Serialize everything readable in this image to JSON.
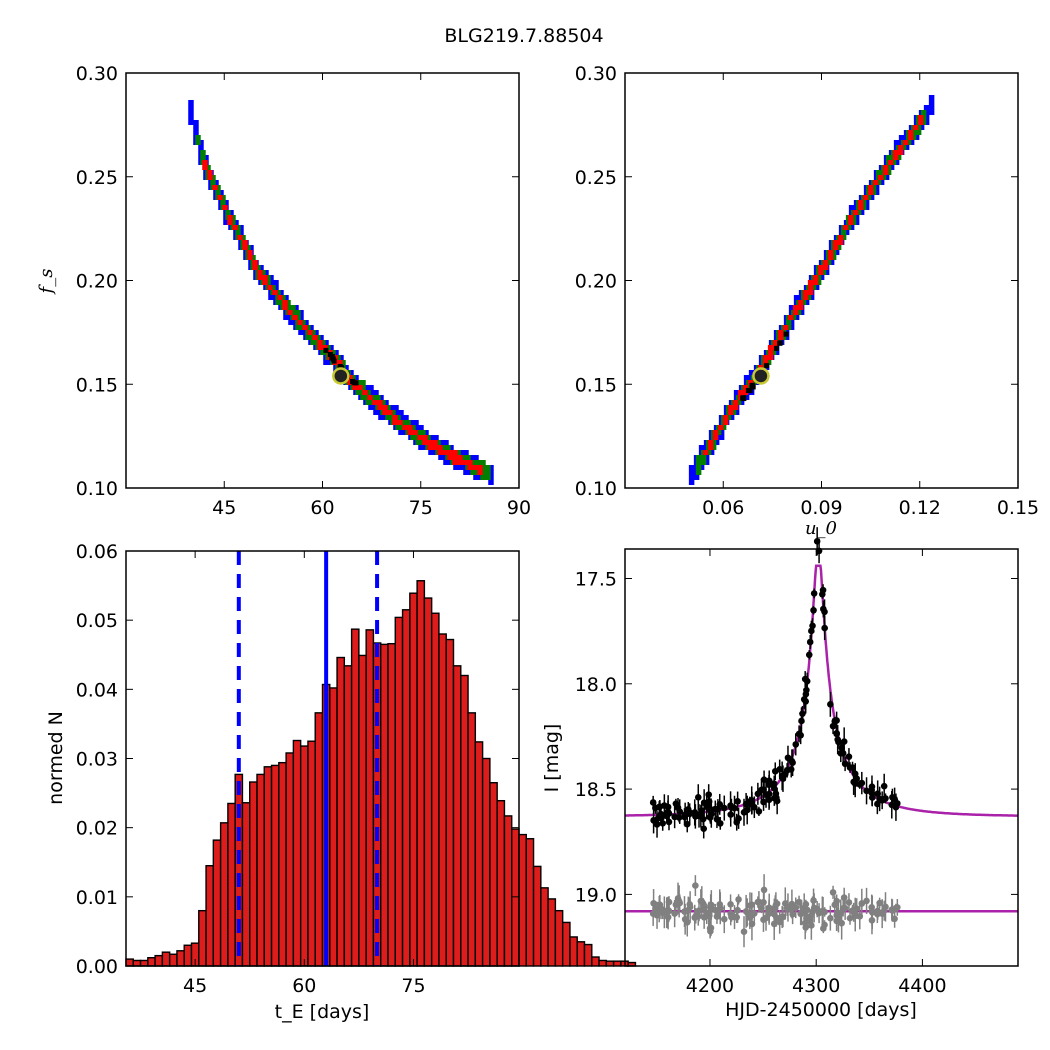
{
  "figure": {
    "title": "BLG219.7.88504"
  },
  "chart_data": [
    {
      "panel": "top-left",
      "type": "heatmap",
      "title": "",
      "xlabel": "",
      "ylabel": "f_s",
      "xlim": [
        30,
        90
      ],
      "ylim": [
        0.1,
        0.3
      ],
      "xticks": [
        45,
        60,
        75,
        90
      ],
      "xtick_labels": [
        "45",
        "60",
        "75",
        "90"
      ],
      "yticks": [
        0.1,
        0.15,
        0.2,
        0.25,
        0.3
      ],
      "ytick_labels": [
        "0.10",
        "0.15",
        "0.20",
        "0.25",
        "0.30"
      ],
      "confidence_colors": {
        "outer": "#0000ff",
        "middle": "#007f00",
        "inner": "#ff0000",
        "core": "#000000"
      },
      "best_fit": {
        "x": 62.8,
        "y": 0.154
      },
      "ridge": [
        [
          39.5,
          0.285
        ],
        [
          42,
          0.255
        ],
        [
          45,
          0.235
        ],
        [
          50,
          0.205
        ],
        [
          55,
          0.185
        ],
        [
          60,
          0.168
        ],
        [
          65,
          0.15
        ],
        [
          70,
          0.136
        ],
        [
          75,
          0.124
        ],
        [
          80,
          0.115
        ],
        [
          86,
          0.106
        ]
      ]
    },
    {
      "panel": "top-right",
      "type": "heatmap",
      "title": "",
      "xlabel": "u_0",
      "ylabel": "",
      "xlim": [
        0.03,
        0.15
      ],
      "ylim": [
        0.1,
        0.3
      ],
      "xticks": [
        0.06,
        0.09,
        0.12,
        0.15
      ],
      "xtick_labels": [
        "0.06",
        "0.09",
        "0.12",
        "0.15"
      ],
      "yticks": [
        0.1,
        0.15,
        0.2,
        0.25,
        0.3
      ],
      "ytick_labels": [
        "0.10",
        "0.15",
        "0.20",
        "0.25",
        "0.30"
      ],
      "confidence_colors": {
        "outer": "#0000ff",
        "middle": "#007f00",
        "inner": "#ff0000",
        "core": "#000000"
      },
      "best_fit": {
        "x": 0.0715,
        "y": 0.154
      },
      "ridge": [
        [
          0.0495,
          0.104
        ],
        [
          0.055,
          0.118
        ],
        [
          0.062,
          0.137
        ],
        [
          0.07,
          0.154
        ],
        [
          0.08,
          0.18
        ],
        [
          0.09,
          0.205
        ],
        [
          0.1,
          0.232
        ],
        [
          0.11,
          0.255
        ],
        [
          0.118,
          0.272
        ],
        [
          0.124,
          0.285
        ]
      ]
    },
    {
      "panel": "bottom-left",
      "type": "bar",
      "title": "",
      "xlabel": "t_E [days]",
      "ylabel": "normed N",
      "xlim": [
        35.5,
        89.5
      ],
      "ylim": [
        0,
        0.06
      ],
      "xticks": [
        45,
        60,
        75
      ],
      "xtick_labels": [
        "45",
        "60",
        "75"
      ],
      "yticks": [
        0,
        0.01,
        0.02,
        0.03,
        0.04,
        0.05,
        0.06
      ],
      "ytick_labels": [
        "0.00",
        "0.01",
        "0.02",
        "0.03",
        "0.04",
        "0.05",
        "0.06"
      ],
      "bin_start": 35.5,
      "bin_width": 1,
      "values": [
        0.001,
        0.0008,
        0.0008,
        0.0012,
        0.0015,
        0.002,
        0.0017,
        0.0022,
        0.003,
        0.0033,
        0.008,
        0.0145,
        0.0182,
        0.0207,
        0.0235,
        0.0277,
        0.0236,
        0.0266,
        0.0277,
        0.0288,
        0.029,
        0.0294,
        0.0308,
        0.0326,
        0.0318,
        0.0325,
        0.0366,
        0.0407,
        0.0402,
        0.0446,
        0.0434,
        0.0487,
        0.0449,
        0.0486,
        0.0467,
        0.0465,
        0.0466,
        0.0504,
        0.0515,
        0.0539,
        0.0557,
        0.0532,
        0.051,
        0.048,
        0.0472,
        0.0434,
        0.042,
        0.0366,
        0.0324,
        0.03,
        0.0265,
        0.0239,
        0.0217,
        0.0198,
        0.019,
        0.0184,
        0.0144,
        0.0113,
        0.0097,
        0.008,
        0.0063,
        0.0042,
        0.0035,
        0.0031,
        0.0013,
        0.0008,
        0.0007,
        0.0007,
        0.0007,
        0.0005
      ],
      "bar_color": "#dd1c1c",
      "median_line": {
        "x": 63.0,
        "color": "#0000ff",
        "style": "solid"
      },
      "percentile_lines": [
        {
          "x": 51.0,
          "color": "#0000ff",
          "style": "dashed"
        },
        {
          "x": 70.0,
          "color": "#0000ff",
          "style": "dashed"
        }
      ]
    },
    {
      "panel": "bottom-right",
      "type": "scatter",
      "title": "",
      "xlabel": "HJD-2450000 [days]",
      "ylabel": "I [mag]",
      "xlim": [
        4120,
        4490
      ],
      "ylim": [
        19.34,
        17.36
      ],
      "y_inverted": true,
      "xticks": [
        4200,
        4300,
        4400
      ],
      "xtick_labels": [
        "4200",
        "4300",
        "4400"
      ],
      "yticks": [
        17.5,
        18.0,
        18.5,
        19.0
      ],
      "ytick_labels": [
        "17.5",
        "18.0",
        "18.5",
        "19.0"
      ],
      "model": {
        "t0": 4302,
        "tE": 63,
        "u0": 0.072,
        "fs": 0.154,
        "baseline": 18.63,
        "color": "#aa22aa"
      },
      "residual_offset": 19.08,
      "data_color": "#000000",
      "residual_color": "#808080"
    }
  ]
}
